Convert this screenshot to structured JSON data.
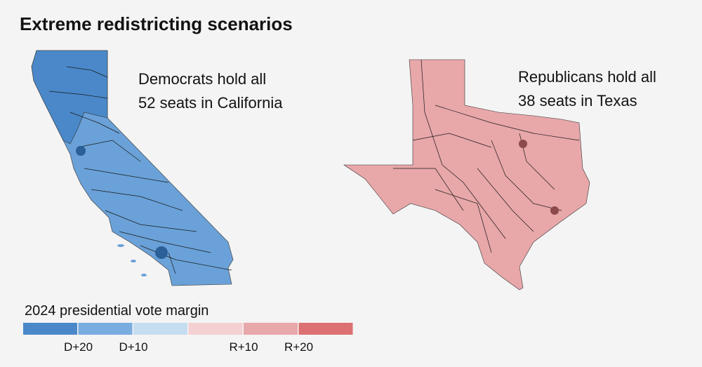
{
  "header": {
    "title": "Extreme redistricting scenarios"
  },
  "maps": [
    {
      "name": "California",
      "color": "#6aa1d8",
      "annotation": [
        "Democrats hold all",
        "52 seats in California"
      ]
    },
    {
      "name": "Texas",
      "color": "#e8a7a9",
      "annotation": [
        "Republicans hold all",
        "38 seats in Texas"
      ]
    }
  ],
  "legend": {
    "title": "2024 presidential vote margin",
    "colors": [
      "#4a88c9",
      "#79ade0",
      "#c6ddf1",
      "#f5d0d2",
      "#e8a7a9",
      "#dc7072"
    ],
    "labels": [
      "D+20",
      "D+10",
      "R+10",
      "R+20"
    ]
  }
}
